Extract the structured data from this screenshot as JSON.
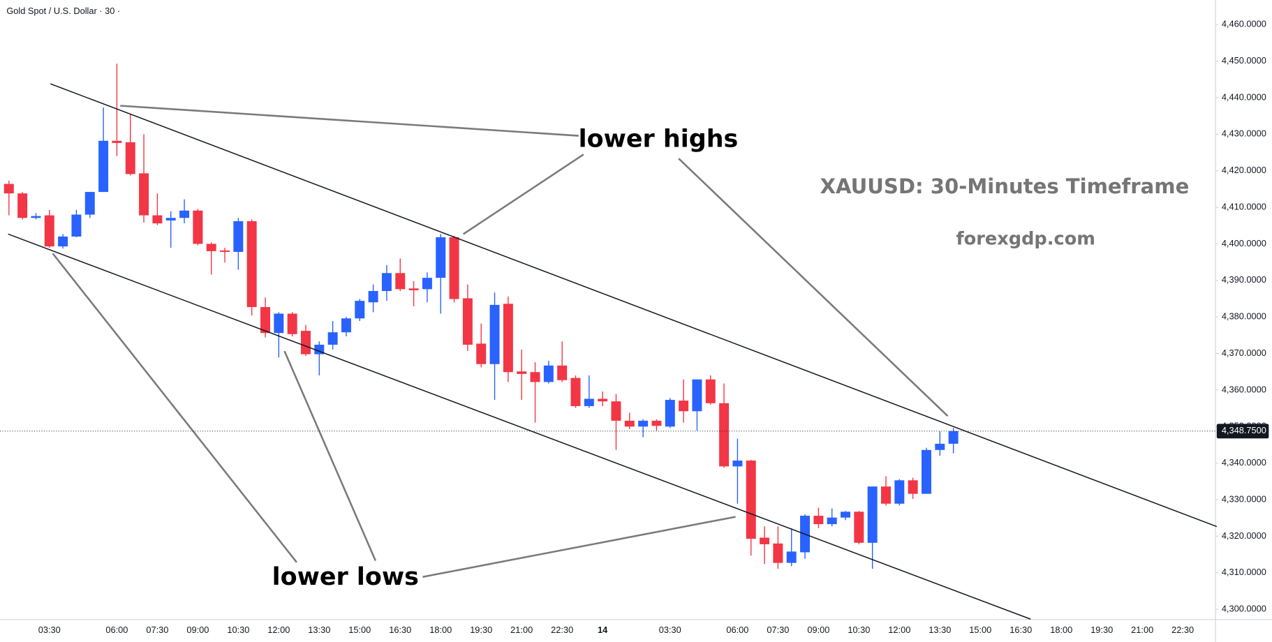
{
  "chart_data": {
    "type": "candlestick",
    "title": "Gold Spot / U.S. Dollar · 30 ·",
    "annotations": [
      "lower highs",
      "lower lows",
      "XAUUSD: 30-Minutes Timeframe",
      "forexgdp.com"
    ],
    "categories": [
      null,
      null,
      null,
      "03:30",
      null,
      null,
      null,
      null,
      "06:00",
      null,
      null,
      "07:30",
      null,
      null,
      "09:00",
      null,
      null,
      "10:30",
      null,
      null,
      "12:00",
      null,
      null,
      "13:30",
      null,
      null,
      "15:00",
      null,
      null,
      "16:30",
      null,
      null,
      "18:00",
      null,
      null,
      "19:30",
      null,
      null,
      "21:00",
      null,
      null,
      "22:30",
      null,
      null,
      "14",
      null,
      null,
      null,
      null,
      "03:30",
      null,
      null,
      null,
      null,
      "06:00",
      null,
      null,
      "07:30",
      null,
      null,
      "09:00",
      null,
      null,
      "10:30",
      null,
      null,
      "12:00",
      null,
      null,
      "13:30",
      null,
      null,
      "15:00",
      null,
      null,
      "16:30",
      null,
      null,
      "18:00",
      null,
      null,
      "19:30",
      null,
      null,
      "21:00",
      null,
      null,
      "22:30",
      null,
      null
    ],
    "open": [
      4416.4,
      4413.8,
      4407.1,
      4407.8,
      4399.3,
      4402.0,
      4408.0,
      4414.2,
      4428.2,
      4427.8,
      4419.3,
      4407.8,
      4406.4,
      4407.1,
      4409.1,
      4400.0,
      4398.2,
      4397.8,
      4406.2,
      4382.7,
      4375.6,
      4380.9,
      4376.2,
      4369.8,
      4372.4,
      4375.8,
      4379.6,
      4384.0,
      4387.1,
      4392.0,
      4387.8,
      4387.6,
      4390.7,
      4401.8,
      4385.1,
      4372.7,
      4367.1,
      4383.6,
      4365.1,
      4364.9,
      4362.2,
      4366.7,
      4363.3,
      4355.6,
      4357.6,
      4356.9,
      4351.6,
      4350.0,
      4351.6,
      4350.0,
      4357.1,
      4354.2,
      4362.9,
      4356.4,
      4339.1,
      4340.7,
      4319.6,
      4318.0,
      4312.7,
      4315.6,
      4325.6,
      4323.3,
      4325.1,
      4326.7,
      4318.2,
      4333.6,
      4328.9,
      4335.3,
      4331.6,
      4343.6,
      4345.3,
      null,
      null,
      null,
      null,
      null,
      null,
      null,
      null,
      null,
      null,
      null,
      null,
      null,
      null,
      null,
      null,
      null,
      null,
      null
    ],
    "high": [
      4417.3,
      4414.2,
      4408.4,
      4409.3,
      4402.7,
      4409.3,
      4414.2,
      4437.3,
      4449.3,
      4435.6,
      4430.0,
      4413.8,
      4408.9,
      4412.2,
      4409.6,
      4400.4,
      4398.9,
      4407.1,
      4406.7,
      4385.3,
      4381.3,
      4381.3,
      4377.8,
      4373.3,
      4378.9,
      4380.0,
      4384.9,
      4388.9,
      4394.2,
      4396.0,
      4389.8,
      4392.2,
      4402.7,
      4402.2,
      4388.9,
      4378.2,
      4386.7,
      4385.6,
      4371.1,
      4367.6,
      4368.0,
      4373.3,
      4364.0,
      4364.0,
      4359.6,
      4358.9,
      4353.8,
      4352.0,
      4352.0,
      4357.8,
      4362.9,
      4362.9,
      4364.0,
      4361.8,
      4346.7,
      4340.9,
      4322.7,
      4322.7,
      4322.2,
      4326.0,
      4327.8,
      4327.6,
      4326.9,
      4326.9,
      4333.6,
      4336.4,
      4335.6,
      4336.0,
      4344.2,
      4348.7,
      4349.6,
      null,
      null,
      null,
      null,
      null,
      null,
      null,
      null,
      null,
      null,
      null,
      null,
      null,
      null,
      null,
      null,
      null,
      null,
      null
    ],
    "low": [
      4407.8,
      4406.7,
      4406.7,
      4398.9,
      4398.7,
      4401.8,
      4407.1,
      4414.2,
      4424.0,
      4418.7,
      4405.8,
      4405.1,
      4398.9,
      4405.6,
      4399.6,
      4391.6,
      4394.9,
      4392.9,
      4380.4,
      4374.4,
      4368.9,
      4374.7,
      4369.3,
      4364.0,
      4371.1,
      4374.7,
      4378.9,
      4381.3,
      4384.4,
      4387.1,
      4382.9,
      4384.0,
      4380.9,
      4384.0,
      4370.7,
      4366.2,
      4357.3,
      4362.2,
      4357.3,
      4351.1,
      4361.8,
      4362.2,
      4355.1,
      4355.1,
      4355.6,
      4343.6,
      4349.3,
      4347.1,
      4348.9,
      4349.6,
      4351.1,
      4348.9,
      4356.0,
      4338.7,
      4328.9,
      4314.7,
      4312.4,
      4311.1,
      4311.8,
      4313.8,
      4322.2,
      4322.7,
      4324.4,
      4317.8,
      4311.1,
      4328.4,
      4328.4,
      4330.2,
      4331.6,
      4342.0,
      4342.7,
      null,
      null,
      null,
      null,
      null,
      null,
      null,
      null,
      null,
      null,
      null,
      null,
      null,
      null,
      null,
      null,
      null,
      null,
      null
    ],
    "close": [
      4413.8,
      4407.1,
      4407.6,
      4399.3,
      4402.0,
      4408.0,
      4414.2,
      4428.2,
      4427.6,
      4419.1,
      4407.8,
      4405.6,
      4407.1,
      4409.1,
      4400.0,
      4398.0,
      4397.8,
      4406.2,
      4382.7,
      4375.6,
      4380.9,
      4375.3,
      4369.8,
      4372.4,
      4375.8,
      4379.6,
      4384.4,
      4387.1,
      4392.0,
      4387.6,
      4387.3,
      4390.7,
      4401.8,
      4384.9,
      4372.4,
      4367.1,
      4383.3,
      4364.9,
      4364.4,
      4362.2,
      4366.7,
      4362.7,
      4355.6,
      4357.6,
      4356.9,
      4351.6,
      4350.0,
      4351.6,
      4350.2,
      4357.3,
      4354.2,
      4362.9,
      4356.4,
      4339.1,
      4340.7,
      4319.3,
      4317.8,
      4312.7,
      4315.8,
      4325.6,
      4323.3,
      4325.1,
      4326.7,
      4318.2,
      4333.6,
      4328.9,
      4335.3,
      4331.6,
      4343.6,
      4345.3,
      4348.75,
      null,
      null,
      null,
      null,
      null,
      null,
      null,
      null,
      null,
      null,
      null,
      null,
      null,
      null,
      null,
      null,
      null,
      null,
      null
    ],
    "up_color": "#2962ff",
    "down_color": "#f23645",
    "last_price": {
      "value": 4348.75,
      "label": "4,348.7500"
    },
    "ylim": [
      4297.3,
      4466.7
    ],
    "yticks": [
      {
        "value": 4300,
        "label": "4,300.0000"
      },
      {
        "value": 4310,
        "label": "4,310.0000"
      },
      {
        "value": 4320,
        "label": "4,320.0000"
      },
      {
        "value": 4330,
        "label": "4,330.0000"
      },
      {
        "value": 4340,
        "label": "4,340.0000"
      },
      {
        "value": 4350,
        "label": "4,350.0000"
      },
      {
        "value": 4360,
        "label": "4,360.0000"
      },
      {
        "value": 4370,
        "label": "4,370.0000"
      },
      {
        "value": 4380,
        "label": "4,380.0000"
      },
      {
        "value": 4390,
        "label": "4,390.0000"
      },
      {
        "value": 4400,
        "label": "4,400.0000"
      },
      {
        "value": 4410,
        "label": "4,410.0000"
      },
      {
        "value": 4420,
        "label": "4,420.0000"
      },
      {
        "value": 4430,
        "label": "4,430.0000"
      },
      {
        "value": 4440,
        "label": "4,440.0000"
      },
      {
        "value": 4450,
        "label": "4,450.0000"
      },
      {
        "value": 4460,
        "label": "4,460.0000"
      }
    ],
    "grid": false
  }
}
